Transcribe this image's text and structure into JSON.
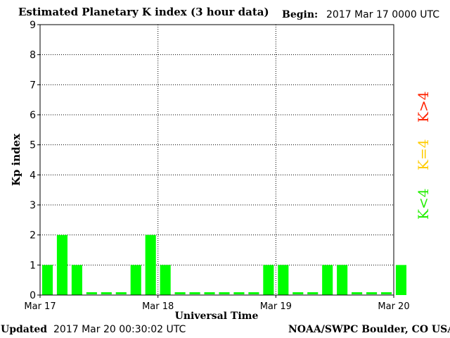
{
  "header": {
    "title": "Estimated Planetary K index (3 hour data)",
    "begin_label": "Begin:",
    "begin_value": "2017 Mar 17 0000 UTC"
  },
  "footer": {
    "updated_label": "Updated",
    "updated_value": "2017 Mar 20 00:30:02 UTC",
    "source": "NOAA/SWPC Boulder, CO USA"
  },
  "legend": {
    "high": "K>4",
    "equal": "K=4",
    "low": "K<4"
  },
  "colors": {
    "low": "#00ff00",
    "equal": "#ffcc00",
    "high": "#ff2200"
  },
  "chart_data": {
    "type": "bar",
    "title": "Estimated Planetary K index (3 hour data)",
    "xlabel": "Universal Time",
    "ylabel": "Kp index",
    "ylim": [
      0,
      9
    ],
    "yticks": [
      "0",
      "1",
      "2",
      "3",
      "4",
      "5",
      "6",
      "7",
      "8",
      "9"
    ],
    "xticks": [
      "Mar 17",
      "Mar 18",
      "Mar 19",
      "Mar 20"
    ],
    "interval_hours": 3,
    "values": [
      1,
      2,
      1,
      0,
      0,
      0,
      1,
      2,
      1,
      0,
      0,
      0,
      0,
      0,
      0,
      1,
      1,
      0,
      0,
      1,
      1,
      0,
      0,
      0,
      1
    ],
    "grid": true
  }
}
